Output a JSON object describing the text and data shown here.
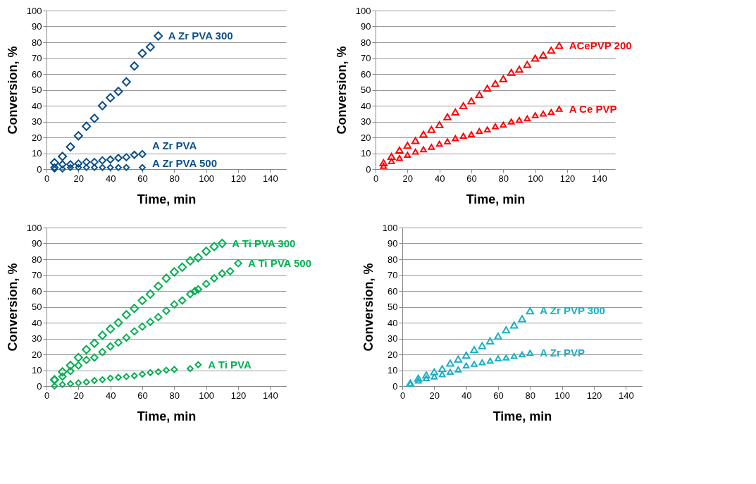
{
  "chart_data": [
    {
      "type": "scatter",
      "xlabel": "Time, min",
      "ylabel": "Conversion, %",
      "xlim": [
        0,
        150
      ],
      "xticks": [
        0,
        20,
        40,
        60,
        80,
        100,
        120,
        140
      ],
      "ylim": [
        0,
        100
      ],
      "yticks": [
        0,
        10,
        20,
        30,
        40,
        50,
        60,
        70,
        80,
        90,
        100
      ],
      "grid": "y",
      "legend": false,
      "series": [
        {
          "name": "A Zr PVA 300",
          "color": "#0b4f8a",
          "marker": "diamond",
          "x": [
            5,
            10,
            15,
            20,
            25,
            30,
            35,
            40,
            45,
            50,
            55,
            60,
            65,
            70
          ],
          "values": [
            4,
            8,
            14,
            21,
            27,
            32,
            40,
            45,
            49,
            55,
            65,
            73,
            77,
            84
          ]
        },
        {
          "name": "A Zr PVA",
          "color": "#0b4f8a",
          "marker": "diamond",
          "x": [
            5,
            10,
            15,
            20,
            25,
            30,
            35,
            40,
            45,
            50,
            55,
            60
          ],
          "values": [
            1,
            3,
            3,
            3.5,
            4.5,
            4.5,
            5.5,
            6,
            7,
            7.5,
            9,
            9.5
          ]
        },
        {
          "name": "A Zr PVA 500",
          "color": "#0b4f8a",
          "marker": "diamond",
          "x": [
            5,
            10,
            15,
            20,
            25,
            30,
            35,
            40,
            45,
            50,
            60
          ],
          "values": [
            0,
            0,
            1,
            1,
            1,
            1,
            1,
            1,
            1,
            1,
            1
          ]
        }
      ]
    },
    {
      "type": "scatter",
      "xlabel": "Time, min",
      "ylabel": "Conversion, %",
      "xlim": [
        0,
        150
      ],
      "xticks": [
        0,
        20,
        40,
        60,
        80,
        100,
        120,
        140
      ],
      "ylim": [
        0,
        100
      ],
      "yticks": [
        0,
        10,
        20,
        30,
        40,
        50,
        60,
        70,
        80,
        90,
        100
      ],
      "grid": "y",
      "legend": false,
      "series": [
        {
          "name": "ACePVP 200",
          "color": "#ff0000",
          "marker": "triangle",
          "x": [
            5,
            10,
            15,
            20,
            25,
            30,
            35,
            40,
            45,
            50,
            55,
            60,
            65,
            70,
            75,
            80,
            85,
            90,
            95,
            100,
            105,
            110,
            115
          ],
          "values": [
            4,
            8,
            12,
            15,
            18,
            22,
            25,
            28,
            33,
            36,
            40,
            43,
            47,
            51,
            54,
            57,
            61,
            63,
            66,
            70,
            72,
            75,
            78
          ]
        },
        {
          "name": "A Ce PVP",
          "color": "#ff0000",
          "marker": "triangle",
          "x": [
            5,
            10,
            15,
            20,
            25,
            30,
            35,
            40,
            45,
            50,
            55,
            60,
            65,
            70,
            75,
            80,
            85,
            90,
            95,
            100,
            105,
            110,
            115
          ],
          "values": [
            2,
            5,
            7,
            9,
            11,
            12.5,
            14,
            16,
            17.5,
            19.5,
            21,
            22,
            24,
            25,
            27,
            28,
            30,
            31,
            32,
            34,
            35,
            36,
            38
          ]
        }
      ]
    },
    {
      "type": "scatter",
      "xlabel": "Time, min",
      "ylabel": "Conversion,  %",
      "xlim": [
        0,
        150
      ],
      "xticks": [
        0,
        20,
        40,
        60,
        80,
        100,
        120,
        140
      ],
      "ylim": [
        0,
        100
      ],
      "yticks": [
        0,
        10,
        20,
        30,
        40,
        50,
        60,
        70,
        80,
        90,
        100
      ],
      "grid": "y",
      "legend": false,
      "series": [
        {
          "name": "A Ti PVA 300",
          "color": "#00b050",
          "marker": "diamond",
          "x": [
            5,
            10,
            15,
            20,
            25,
            30,
            35,
            40,
            45,
            50,
            55,
            60,
            65,
            70,
            75,
            80,
            85,
            90,
            95,
            100,
            105,
            110
          ],
          "values": [
            4,
            9,
            13,
            18,
            23,
            27,
            32,
            36,
            40,
            45,
            49,
            54,
            58,
            63,
            68,
            72,
            75,
            79,
            81,
            85,
            88,
            90
          ]
        },
        {
          "name": "A Ti PVA 500",
          "color": "#00b050",
          "marker": "diamond",
          "x": [
            5,
            10,
            15,
            20,
            25,
            30,
            35,
            40,
            45,
            50,
            55,
            60,
            65,
            70,
            75,
            80,
            85,
            90,
            93,
            95,
            100,
            105,
            110,
            115,
            120
          ],
          "values": [
            4,
            6,
            9.5,
            13,
            16.5,
            18,
            21.5,
            25,
            27.5,
            30.5,
            34.5,
            37.5,
            40.5,
            43.5,
            47.5,
            51.5,
            54,
            58,
            60,
            61,
            64.5,
            68,
            71,
            72.5,
            77.5
          ]
        },
        {
          "name": "A Ti PVA",
          "color": "#00b050",
          "marker": "diamond",
          "x": [
            5,
            10,
            15,
            20,
            25,
            30,
            35,
            40,
            45,
            50,
            55,
            60,
            65,
            70,
            75,
            80,
            90,
            95
          ],
          "values": [
            0,
            1,
            1.5,
            2,
            2.5,
            3.5,
            4,
            5,
            5.5,
            6,
            6.5,
            7.5,
            8.5,
            9,
            10,
            10.5,
            11,
            13.5
          ]
        }
      ]
    },
    {
      "type": "scatter",
      "xlabel": "Time, min",
      "ylabel": "Conversion,  %",
      "xlim": [
        0,
        150
      ],
      "xticks": [
        0,
        20,
        40,
        60,
        80,
        100,
        120,
        140
      ],
      "ylim": [
        0,
        100
      ],
      "yticks": [
        0,
        10,
        20,
        30,
        40,
        50,
        60,
        70,
        80,
        90,
        100
      ],
      "grid": "y",
      "legend": false,
      "series": [
        {
          "name": "A Zr PVP 300",
          "color": "#17b0c8",
          "marker": "triangle",
          "x": [
            5,
            10,
            15,
            20,
            25,
            30,
            35,
            40,
            45,
            50,
            55,
            60,
            65,
            70,
            75,
            80
          ],
          "values": [
            2,
            5,
            7,
            9,
            11,
            14.5,
            17,
            19.5,
            23,
            25.5,
            28.5,
            31.5,
            35.5,
            38.5,
            42.5,
            47.5
          ]
        },
        {
          "name": "A Zr PVP",
          "color": "#17b0c8",
          "marker": "triangle",
          "x": [
            5,
            10,
            15,
            20,
            25,
            30,
            35,
            40,
            45,
            50,
            55,
            60,
            65,
            70,
            75,
            80
          ],
          "values": [
            1.5,
            3.5,
            5,
            6,
            7.5,
            9,
            10.5,
            13,
            14,
            15,
            16,
            17.5,
            18,
            19,
            20,
            21
          ]
        }
      ]
    }
  ]
}
